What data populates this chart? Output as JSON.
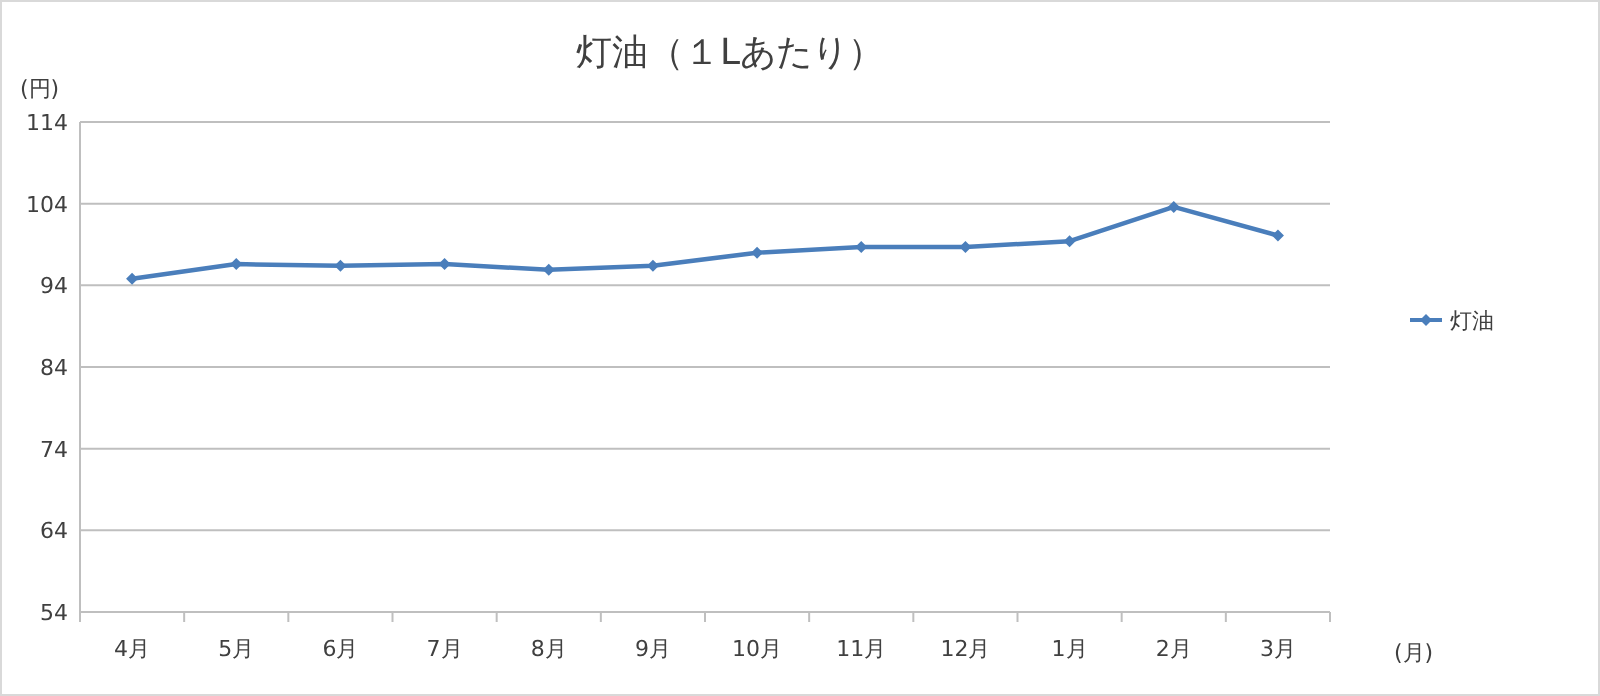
{
  "chart_data": {
    "type": "line",
    "title": "灯油（１Lあたり）",
    "ylabel": "(円)",
    "xlabel": "(月)",
    "categories": [
      "4月",
      "5月",
      "6月",
      "7月",
      "8月",
      "9月",
      "10月",
      "11月",
      "12月",
      "1月",
      "2月",
      "3月"
    ],
    "series": [
      {
        "name": "灯油",
        "color": "#4a7ebb",
        "values": [
          94.8,
          96.6,
          96.4,
          96.6,
          95.9,
          96.4,
          98.0,
          98.7,
          98.7,
          99.4,
          103.6,
          100.1
        ]
      }
    ],
    "ylim": [
      54,
      114
    ],
    "yticks": [
      54,
      64,
      74,
      84,
      94,
      104,
      114
    ],
    "grid": "y",
    "legend": "right",
    "marker": "diamond",
    "line_style": "solid"
  }
}
